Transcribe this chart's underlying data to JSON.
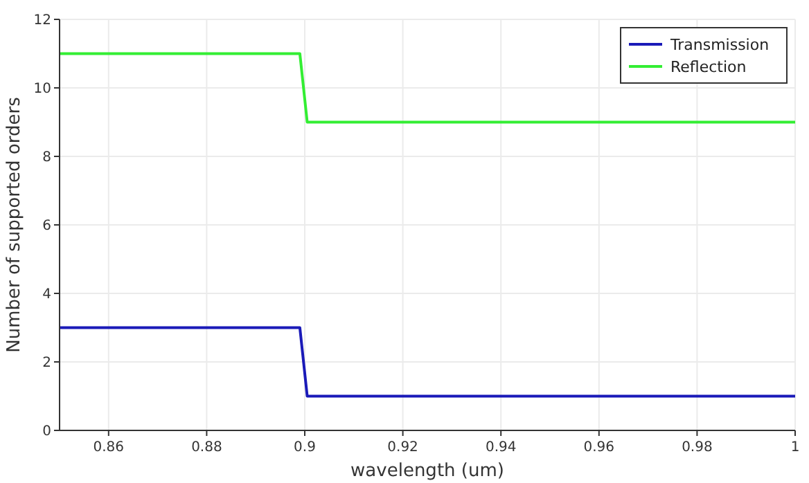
{
  "chart_data": {
    "type": "line",
    "xlabel": "wavelength (um)",
    "ylabel": "Number of supported orders",
    "xlim": [
      0.85,
      1
    ],
    "xticks": [
      0.86,
      0.88,
      0.9,
      0.92,
      0.94,
      0.96,
      0.98,
      1
    ],
    "ylim": [
      0,
      12
    ],
    "yticks": [
      0,
      2,
      4,
      6,
      8,
      10,
      12
    ],
    "grid": true,
    "legend": "top right",
    "marker": "none",
    "line_style": "solid",
    "series": [
      {
        "name": "Transmission",
        "color": "#1a1ab8",
        "x": [
          0.85,
          0.899,
          0.9005,
          1
        ],
        "values": [
          3,
          3,
          1,
          1
        ]
      },
      {
        "name": "Reflection",
        "color": "#33ee33",
        "x": [
          0.85,
          0.899,
          0.9005,
          1
        ],
        "values": [
          11,
          11,
          9,
          9
        ]
      }
    ]
  }
}
